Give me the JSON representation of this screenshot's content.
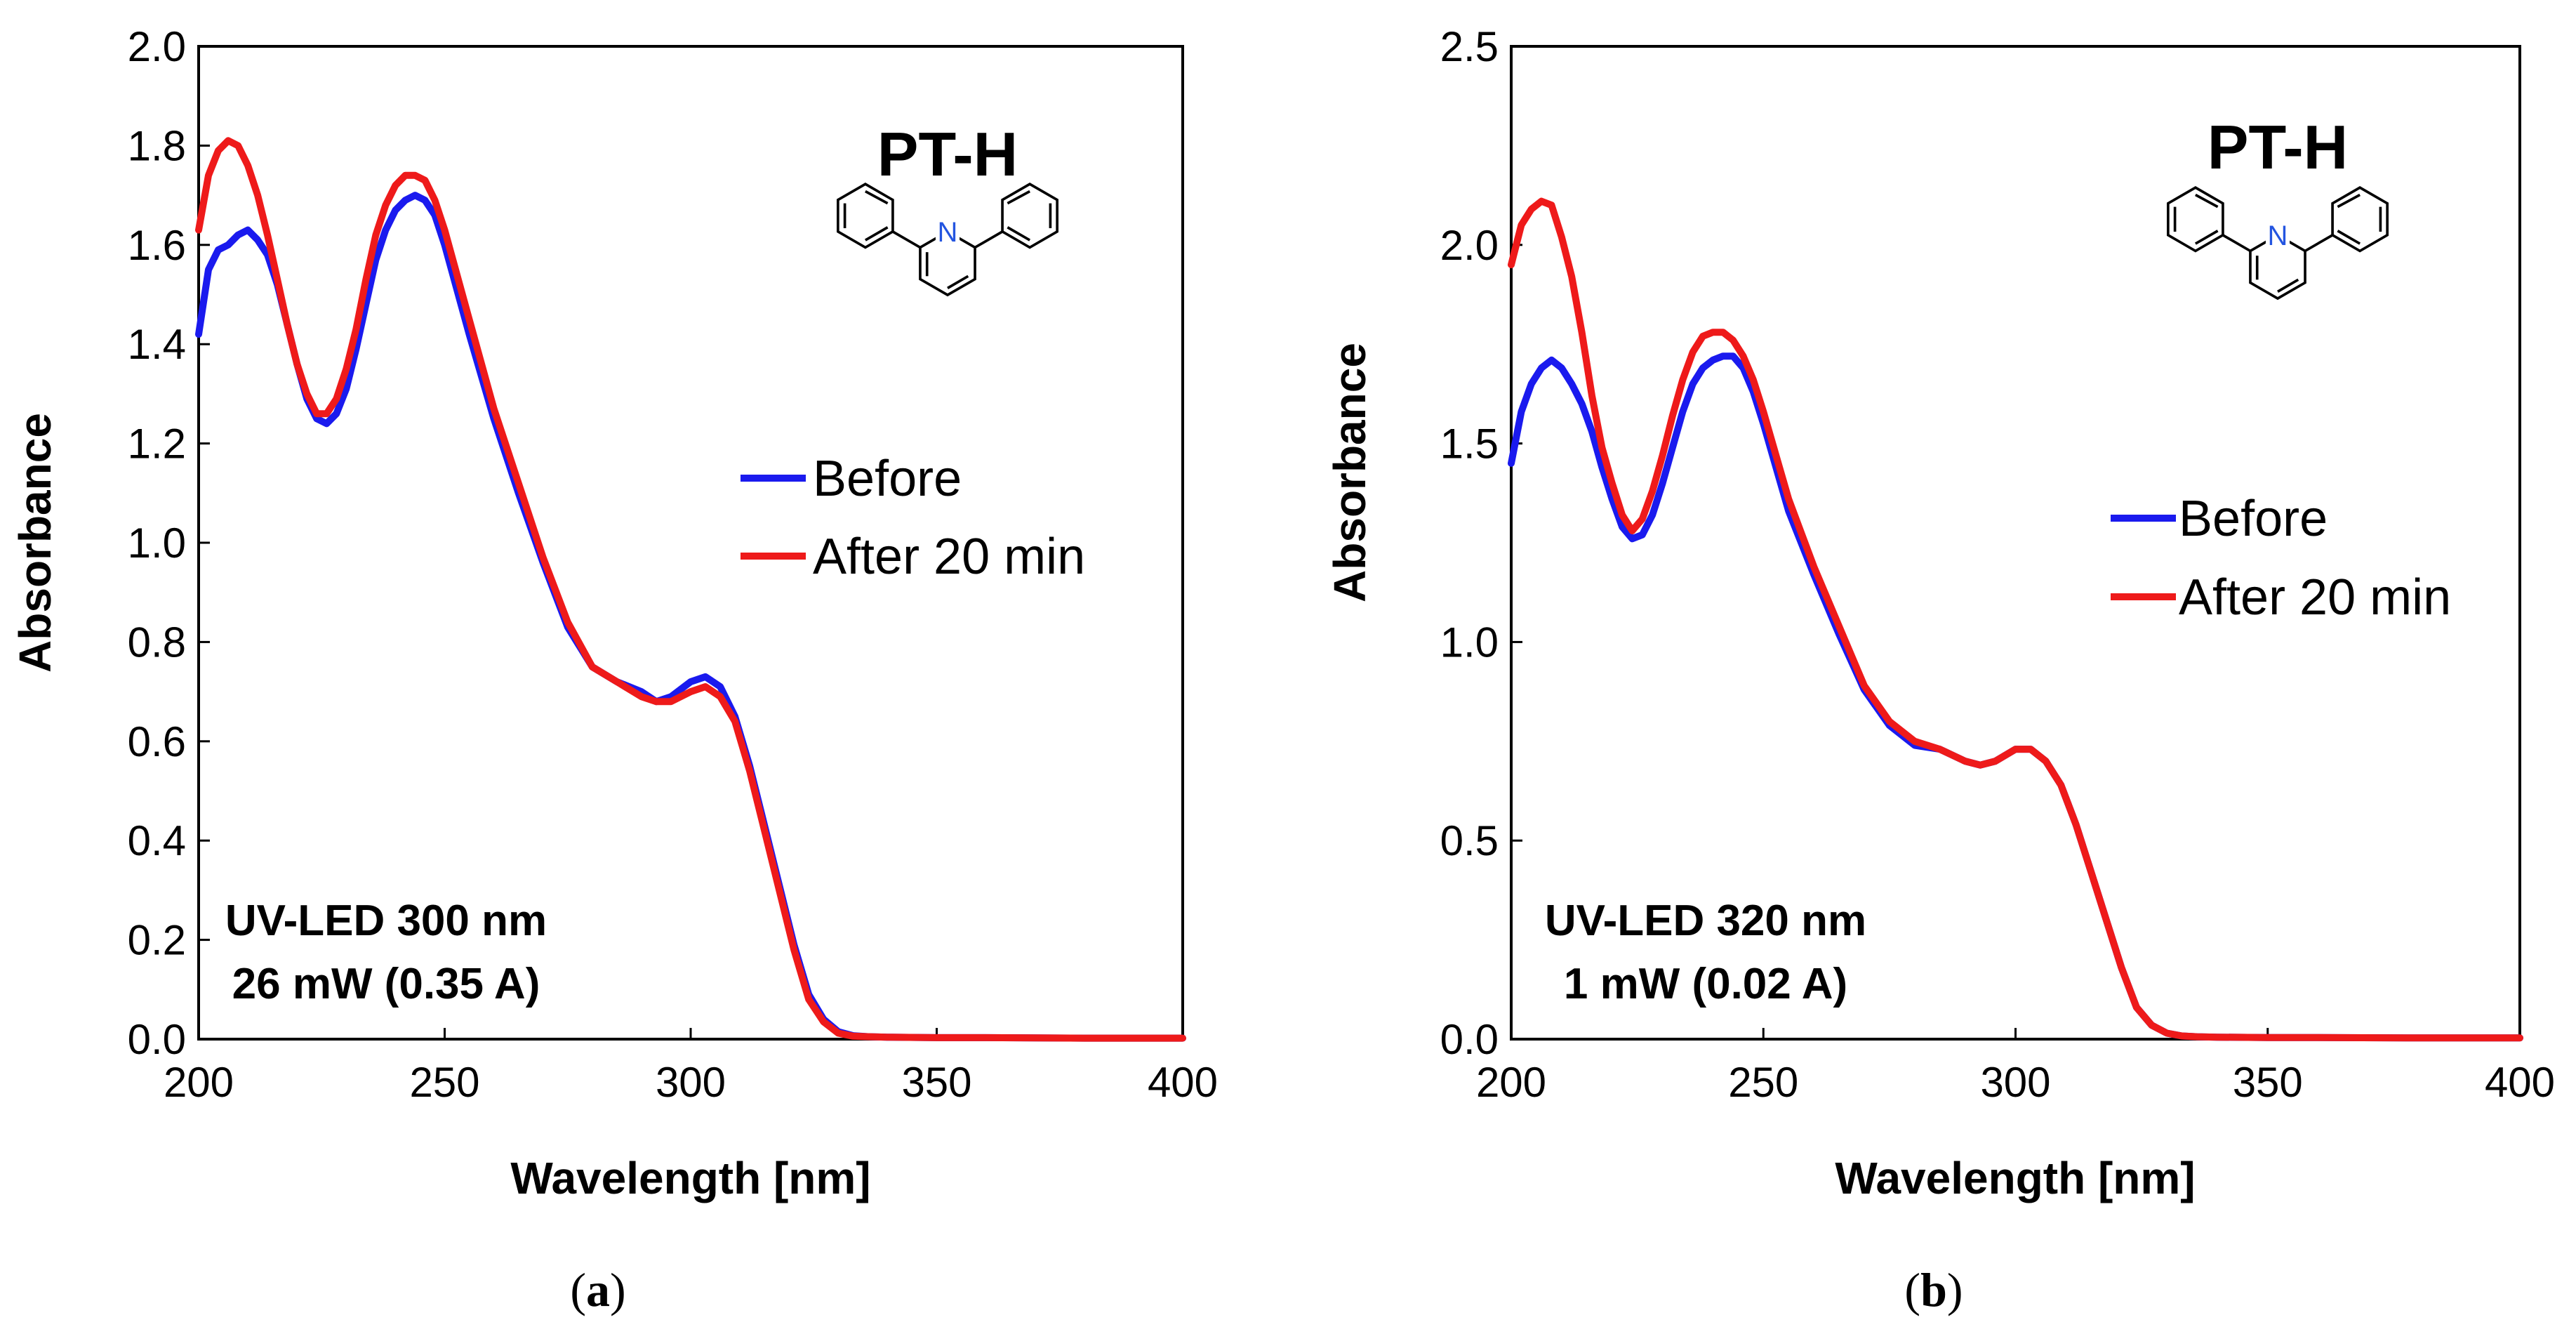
{
  "chart_data": [
    {
      "type": "line",
      "panel_label": "a",
      "compound": "PT-H",
      "condition_line1": "UV-LED 300 nm",
      "condition_line2": "26 mW (0.35 A)",
      "xlabel": "Wavelength [nm]",
      "ylabel": "Absorbance",
      "xlim": [
        200,
        400
      ],
      "ylim": [
        0,
        2.0
      ],
      "xticks": [
        "200",
        "250",
        "300",
        "350",
        "400"
      ],
      "yticks": [
        "0.0",
        "0.2",
        "0.4",
        "0.6",
        "0.8",
        "1.0",
        "1.2",
        "1.4",
        "1.6",
        "1.8",
        "2.0"
      ],
      "legend_position": "center-right",
      "series": [
        {
          "name": "Before",
          "color": "#1a1aee",
          "x": [
            200,
            202,
            204,
            206,
            208,
            210,
            212,
            214,
            216,
            218,
            220,
            222,
            224,
            226,
            228,
            230,
            232,
            234,
            236,
            238,
            240,
            242,
            244,
            246,
            248,
            250,
            255,
            260,
            265,
            270,
            275,
            280,
            285,
            290,
            293,
            296,
            300,
            303,
            306,
            309,
            312,
            315,
            318,
            321,
            324,
            327,
            330,
            333,
            336,
            340,
            350,
            360,
            380,
            400
          ],
          "y": [
            1.42,
            1.55,
            1.59,
            1.6,
            1.62,
            1.63,
            1.61,
            1.58,
            1.52,
            1.44,
            1.36,
            1.29,
            1.25,
            1.24,
            1.26,
            1.31,
            1.39,
            1.48,
            1.57,
            1.63,
            1.67,
            1.69,
            1.7,
            1.69,
            1.66,
            1.6,
            1.42,
            1.25,
            1.1,
            0.96,
            0.83,
            0.75,
            0.72,
            0.7,
            0.68,
            0.69,
            0.72,
            0.73,
            0.71,
            0.65,
            0.55,
            0.43,
            0.31,
            0.19,
            0.09,
            0.04,
            0.015,
            0.007,
            0.005,
            0.004,
            0.003,
            0.003,
            0.002,
            0.002
          ]
        },
        {
          "name": "After 20 min",
          "color": "#ee1a1a",
          "x": [
            200,
            202,
            204,
            206,
            208,
            210,
            212,
            214,
            216,
            218,
            220,
            222,
            224,
            226,
            228,
            230,
            232,
            234,
            236,
            238,
            240,
            242,
            244,
            246,
            248,
            250,
            255,
            260,
            265,
            270,
            275,
            280,
            285,
            290,
            293,
            296,
            300,
            303,
            306,
            309,
            312,
            315,
            318,
            321,
            324,
            327,
            330,
            333,
            336,
            340,
            350,
            360,
            380,
            400
          ],
          "y": [
            1.63,
            1.74,
            1.79,
            1.81,
            1.8,
            1.76,
            1.7,
            1.62,
            1.53,
            1.44,
            1.36,
            1.3,
            1.26,
            1.26,
            1.29,
            1.35,
            1.43,
            1.53,
            1.62,
            1.68,
            1.72,
            1.74,
            1.74,
            1.73,
            1.69,
            1.63,
            1.45,
            1.27,
            1.12,
            0.97,
            0.84,
            0.75,
            0.72,
            0.69,
            0.68,
            0.68,
            0.7,
            0.71,
            0.69,
            0.64,
            0.54,
            0.42,
            0.3,
            0.18,
            0.08,
            0.035,
            0.012,
            0.006,
            0.005,
            0.004,
            0.003,
            0.003,
            0.002,
            0.002
          ]
        }
      ]
    },
    {
      "type": "line",
      "panel_label": "b",
      "compound": "PT-H",
      "condition_line1": "UV-LED 320 nm",
      "condition_line2": "1 mW (0.02 A)",
      "xlabel": "Wavelength [nm]",
      "ylabel": "Absorbance",
      "xlim": [
        200,
        400
      ],
      "ylim": [
        0,
        2.5
      ],
      "xticks": [
        "200",
        "250",
        "300",
        "350",
        "400"
      ],
      "yticks": [
        "0.0",
        "0.5",
        "1.0",
        "1.5",
        "2.0",
        "2.5"
      ],
      "legend_position": "center-right",
      "series": [
        {
          "name": "Before",
          "color": "#1a1aee",
          "x": [
            200,
            202,
            204,
            206,
            208,
            210,
            212,
            214,
            216,
            218,
            220,
            222,
            224,
            226,
            228,
            230,
            232,
            234,
            236,
            238,
            240,
            242,
            244,
            246,
            248,
            250,
            255,
            260,
            265,
            270,
            275,
            280,
            285,
            290,
            293,
            296,
            300,
            303,
            306,
            309,
            312,
            315,
            318,
            321,
            324,
            327,
            330,
            333,
            336,
            340,
            350,
            360,
            380,
            400
          ],
          "y": [
            1.45,
            1.58,
            1.65,
            1.69,
            1.71,
            1.69,
            1.65,
            1.6,
            1.53,
            1.44,
            1.36,
            1.29,
            1.26,
            1.27,
            1.32,
            1.4,
            1.49,
            1.58,
            1.65,
            1.69,
            1.71,
            1.72,
            1.72,
            1.69,
            1.63,
            1.55,
            1.33,
            1.17,
            1.02,
            0.88,
            0.79,
            0.74,
            0.73,
            0.7,
            0.69,
            0.7,
            0.73,
            0.73,
            0.7,
            0.64,
            0.54,
            0.42,
            0.3,
            0.18,
            0.08,
            0.035,
            0.015,
            0.008,
            0.006,
            0.005,
            0.004,
            0.004,
            0.003,
            0.003
          ]
        },
        {
          "name": "After 20 min",
          "color": "#ee1a1a",
          "x": [
            200,
            202,
            204,
            206,
            208,
            210,
            212,
            214,
            216,
            218,
            220,
            222,
            224,
            226,
            228,
            230,
            232,
            234,
            236,
            238,
            240,
            242,
            244,
            246,
            248,
            250,
            255,
            260,
            265,
            270,
            275,
            280,
            285,
            290,
            293,
            296,
            300,
            303,
            306,
            309,
            312,
            315,
            318,
            321,
            324,
            327,
            330,
            333,
            336,
            340,
            350,
            360,
            380,
            400
          ],
          "y": [
            1.95,
            2.05,
            2.09,
            2.11,
            2.1,
            2.02,
            1.92,
            1.78,
            1.62,
            1.49,
            1.4,
            1.32,
            1.28,
            1.31,
            1.38,
            1.47,
            1.57,
            1.66,
            1.73,
            1.77,
            1.78,
            1.78,
            1.76,
            1.72,
            1.66,
            1.58,
            1.36,
            1.19,
            1.04,
            0.89,
            0.8,
            0.75,
            0.73,
            0.7,
            0.69,
            0.7,
            0.73,
            0.73,
            0.7,
            0.64,
            0.54,
            0.42,
            0.3,
            0.18,
            0.08,
            0.035,
            0.015,
            0.008,
            0.006,
            0.005,
            0.004,
            0.004,
            0.003,
            0.003
          ]
        }
      ]
    }
  ]
}
